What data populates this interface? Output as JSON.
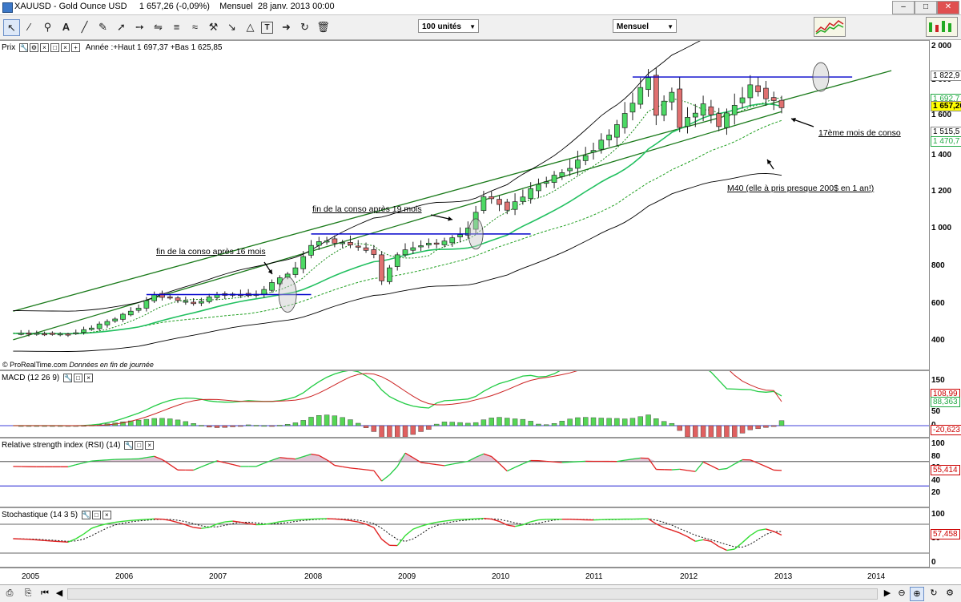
{
  "window": {
    "title": "XAUUSD - Gold Ounce USD     1 657,26 (-0,09%)    Mensuel  28 janv. 2013 00:00",
    "controls": [
      "minimize",
      "maximize",
      "close"
    ]
  },
  "toolbar": {
    "icons": [
      "cursor-icon",
      "ruler-icon",
      "zoom-icon",
      "text-tool-icon",
      "line-tool-icon",
      "pencil-icon",
      "trendline-icon",
      "ray-icon",
      "channel-icon",
      "fib-icon",
      "hammer-icon",
      "triangle-icon",
      "text-box-icon",
      "arrow-tool-icon",
      "loop-icon",
      "trash-icon"
    ],
    "units_select": "100 unités",
    "period_select": "Mensuel"
  },
  "colors": {
    "up": "#4cd964",
    "down": "#e07070",
    "ma_fast": "#22a022",
    "ma_green": "#22c060",
    "bollinger": "#000000",
    "channel": "#1a7a1a",
    "level": "#0000cc",
    "macd_hist_up": "#55d655",
    "macd_hist_down": "#e06060",
    "rsi_line": "#e02020",
    "stoch_line": "#e02020",
    "stoch_green": "#33dd33"
  },
  "price_panel": {
    "header_name": "Prix",
    "header_info": "Année :+Haut 1 697,37 +Bas 1 625,85",
    "credit_brand": "© ProRealTime.com",
    "credit_note": "Données en fin de journée",
    "axis_ticks": [
      "2 000",
      "1 800",
      "1 600",
      "1 400",
      "1 200",
      "1 000",
      "800",
      "600",
      "400"
    ],
    "value_tags": [
      {
        "value": "1 822,9",
        "color": "#000000"
      },
      {
        "value": "1 692,7",
        "color": "#22aa44"
      },
      {
        "value": "1 657,26",
        "color": "#000000",
        "bg": "#ffff00"
      },
      {
        "value": "1 515,5",
        "color": "#000000"
      },
      {
        "value": "1 470,7",
        "color": "#22aa44"
      }
    ],
    "annotations": [
      "fin de la conso après 16 mois",
      "fin de la conso après 19 mois",
      "17ème mois de conso",
      "M40 (elle à pris presque 200$ en 1 an!)"
    ]
  },
  "macd_panel": {
    "header": "MACD (12 26 9)",
    "axis_ticks": [
      "150",
      "100",
      "50",
      "0"
    ],
    "value_tags": [
      {
        "value": "108,99",
        "color": "#cc0000"
      },
      {
        "value": "88,363",
        "color": "#22aa44"
      },
      {
        "value": "-20,623",
        "color": "#cc0000"
      }
    ]
  },
  "rsi_panel": {
    "header": "Relative strength index (RSI) (14)",
    "axis_ticks": [
      "100",
      "80",
      "60",
      "40",
      "20"
    ],
    "value_tags": [
      {
        "value": "55,414",
        "color": "#cc0000"
      }
    ]
  },
  "stoch_panel": {
    "header": "Stochastique (14 3 5)",
    "axis_ticks": [
      "100",
      "50",
      "0"
    ],
    "value_tags": [
      {
        "value": "57,458",
        "color": "#cc0000"
      }
    ]
  },
  "x_axis": {
    "years": [
      "2005",
      "2006",
      "2007",
      "2008",
      "2009",
      "2010",
      "2011",
      "2012",
      "2013",
      "2014"
    ]
  },
  "chart_data": {
    "type": "candlestick",
    "title": "XAUUSD - Gold Ounce USD",
    "period": "monthly",
    "ylim": [
      300,
      2030
    ],
    "x_range": [
      "2005-01",
      "2014-03"
    ],
    "price_points": [
      [
        "2004-11",
        440
      ],
      [
        "2005-06",
        435
      ],
      [
        "2005-09",
        470
      ],
      [
        "2005-12",
        520
      ],
      [
        "2006-03",
        580
      ],
      [
        "2006-05",
        650
      ],
      [
        "2006-07",
        630
      ],
      [
        "2006-10",
        600
      ],
      [
        "2007-01",
        650
      ],
      [
        "2007-06",
        650
      ],
      [
        "2007-09",
        740
      ],
      [
        "2007-11",
        790
      ],
      [
        "2008-01",
        920
      ],
      [
        "2008-03",
        940
      ],
      [
        "2008-06",
        920
      ],
      [
        "2008-09",
        870
      ],
      [
        "2008-10",
        720
      ],
      [
        "2008-12",
        870
      ],
      [
        "2009-03",
        920
      ],
      [
        "2009-06",
        930
      ],
      [
        "2009-09",
        1000
      ],
      [
        "2009-11",
        1180
      ],
      [
        "2010-02",
        1110
      ],
      [
        "2010-06",
        1240
      ],
      [
        "2010-09",
        1310
      ],
      [
        "2010-12",
        1410
      ],
      [
        "2011-04",
        1550
      ],
      [
        "2011-08",
        1820
      ],
      [
        "2011-09",
        1620
      ],
      [
        "2011-11",
        1740
      ],
      [
        "2011-12",
        1560
      ],
      [
        "2012-03",
        1660
      ],
      [
        "2012-05",
        1560
      ],
      [
        "2012-09",
        1770
      ],
      [
        "2012-11",
        1715
      ],
      [
        "2013-01",
        1657
      ]
    ],
    "latest_close": 1657.26,
    "change_pct": -0.09,
    "year_high": 1697.37,
    "year_low": 1625.85,
    "horizontal_levels": [
      {
        "name": "consolidation 2006-2007",
        "value": 650,
        "from": "2006-04",
        "to": "2008-01"
      },
      {
        "name": "consolidation 2008-2009",
        "value": 975,
        "from": "2008-01",
        "to": "2010-05"
      },
      {
        "name": "consolidation 2011-2013",
        "value": 1822.9,
        "from": "2011-06",
        "to": "2013-10"
      }
    ],
    "trend_channel": {
      "upper": [
        [
          "2004-11",
          560
        ],
        [
          "2014-03",
          1860
        ]
      ],
      "lower": [
        [
          "2004-11",
          405
        ],
        [
          "2013-01",
          1630
        ]
      ]
    },
    "macd": {
      "macd": 108.99,
      "signal": 88.363,
      "histogram": -20.623,
      "ylim": [
        -20,
        170
      ]
    },
    "rsi": {
      "value": 55.414,
      "levels": [
        70,
        30
      ],
      "ylim": [
        0,
        100
      ]
    },
    "stochastic": {
      "value": 57.458,
      "levels": [
        80,
        20
      ],
      "ylim": [
        0,
        100
      ]
    }
  }
}
